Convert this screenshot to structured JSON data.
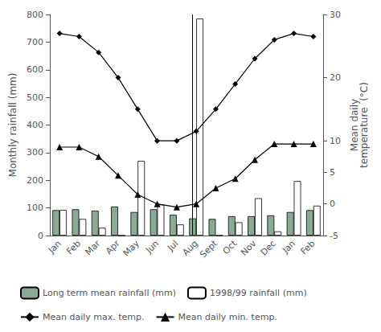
{
  "chart_data": {
    "type": "bar",
    "categories": [
      "Jan",
      "Feb",
      "Mar",
      "Apr",
      "May",
      "Jun",
      "Jul",
      "Aug",
      "Sept",
      "Oct",
      "Nov",
      "Dec",
      "Jan",
      "Feb"
    ],
    "series": [
      {
        "name": "Long term mean rainfall (mm)",
        "type": "bar",
        "color": "#8aaa96",
        "values": [
          92,
          95,
          90,
          105,
          85,
          95,
          75,
          62,
          60,
          70,
          70,
          73,
          85,
          92
        ]
      },
      {
        "name": "1998/99 rainfall (mm)",
        "type": "bar",
        "color": "white",
        "values": [
          93,
          60,
          28,
          0,
          270,
          112,
          40,
          785,
          0,
          48,
          135,
          15,
          197,
          108
        ]
      },
      {
        "name": "Mean daily max. temp.",
        "type": "line",
        "axis": "y2",
        "color": "black",
        "marker": "diamond",
        "values": [
          27,
          26.5,
          24,
          20,
          15,
          10,
          10,
          11.5,
          15,
          19,
          23,
          26,
          27,
          26.5
        ]
      },
      {
        "name": "Mean daily min. temp.",
        "type": "line",
        "axis": "y2",
        "color": "black",
        "marker": "triangle",
        "values": [
          9,
          9,
          7.5,
          4.5,
          1.5,
          0,
          -0.5,
          0,
          2.5,
          4,
          7,
          9.5,
          9.5,
          9.5
        ]
      }
    ],
    "ylabel": "Monthly rainfall (mm)",
    "y2label": "Mean daily\ntemperature  (°C)",
    "ylim": [
      0,
      800
    ],
    "yticks": [
      0,
      100,
      200,
      300,
      400,
      500,
      600,
      700,
      800
    ],
    "y2lim": [
      -5,
      30
    ],
    "y2ticks": [
      -5,
      0,
      5,
      10,
      20,
      30
    ],
    "annotations": [
      {
        "type": "vline",
        "x": "Aug"
      }
    ],
    "grid": false,
    "legend": "bottom"
  }
}
